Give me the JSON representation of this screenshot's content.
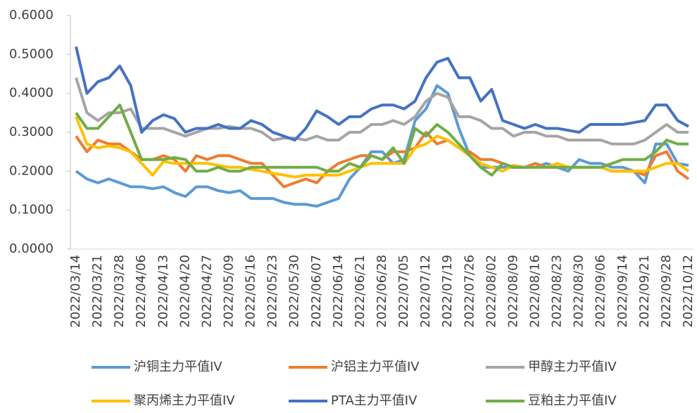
{
  "chart_data": {
    "type": "line",
    "categories": [
      "2022/03/14",
      null,
      "2022/03/21",
      null,
      "2022/03/28",
      null,
      "2022/04/06",
      null,
      "2022/04/13",
      null,
      "2022/04/20",
      null,
      "2022/04/27",
      null,
      "2022/05/09",
      null,
      "2022/05/16",
      null,
      "2022/05/23",
      null,
      "2022/05/30",
      null,
      "2022/06/07",
      null,
      "2022/06/14",
      null,
      "2022/06/21",
      null,
      "2022/06/28",
      null,
      "2022/07/05",
      null,
      "2022/07/12",
      null,
      "2022/07/19",
      null,
      "2022/07/26",
      null,
      "2022/08/02",
      null,
      "2022/08/09",
      null,
      "2022/08/16",
      null,
      "2022/08/23",
      null,
      "2022/08/30",
      null,
      "2022/09/06",
      null,
      "2022/09/14",
      null,
      "2022/09/21",
      null,
      "2022/09/28",
      null,
      "2022/10/12"
    ],
    "series": [
      {
        "name": "沪铜主力平值IV",
        "color": "#5b9bd5",
        "values": [
          0.2,
          0.18,
          0.17,
          0.18,
          0.17,
          0.16,
          0.16,
          0.155,
          0.16,
          0.145,
          0.135,
          0.16,
          0.16,
          0.15,
          0.145,
          0.15,
          0.13,
          0.13,
          0.13,
          0.12,
          0.115,
          0.115,
          0.11,
          0.12,
          0.13,
          0.18,
          0.21,
          0.25,
          0.25,
          0.22,
          0.23,
          0.33,
          0.36,
          0.42,
          0.4,
          0.31,
          0.24,
          0.21,
          0.21,
          0.21,
          0.21,
          0.21,
          0.21,
          0.22,
          0.21,
          0.2,
          0.23,
          0.22,
          0.22,
          0.21,
          0.21,
          0.2,
          0.17,
          0.27,
          0.27,
          0.22,
          0.215
        ]
      },
      {
        "name": "沪铝主力平值IV",
        "color": "#ed7d31",
        "values": [
          0.29,
          0.25,
          0.28,
          0.27,
          0.27,
          0.25,
          0.23,
          0.23,
          0.24,
          0.23,
          0.2,
          0.24,
          0.23,
          0.24,
          0.24,
          0.23,
          0.22,
          0.22,
          0.19,
          0.16,
          0.17,
          0.18,
          0.17,
          0.2,
          0.22,
          0.23,
          0.24,
          0.24,
          0.23,
          0.25,
          0.25,
          0.26,
          0.3,
          0.27,
          0.28,
          0.26,
          0.25,
          0.23,
          0.23,
          0.22,
          0.21,
          0.21,
          0.22,
          0.21,
          0.21,
          0.21,
          0.21,
          0.21,
          0.21,
          0.2,
          0.2,
          0.2,
          0.19,
          0.24,
          0.25,
          0.2,
          0.18
        ]
      },
      {
        "name": "甲醇主力平值IV",
        "color": "#a5a5a5",
        "values": [
          0.44,
          0.35,
          0.33,
          0.35,
          0.35,
          0.36,
          0.31,
          0.31,
          0.31,
          0.3,
          0.29,
          0.3,
          0.31,
          0.31,
          0.315,
          0.31,
          0.31,
          0.3,
          0.28,
          0.285,
          0.285,
          0.28,
          0.29,
          0.28,
          0.28,
          0.3,
          0.3,
          0.32,
          0.32,
          0.33,
          0.32,
          0.34,
          0.38,
          0.4,
          0.39,
          0.34,
          0.34,
          0.33,
          0.31,
          0.31,
          0.29,
          0.3,
          0.3,
          0.29,
          0.29,
          0.28,
          0.28,
          0.28,
          0.28,
          0.27,
          0.27,
          0.27,
          0.28,
          0.3,
          0.32,
          0.3,
          0.3
        ]
      },
      {
        "name": "聚丙烯主力平值IV",
        "color": "#ffc000",
        "values": [
          0.34,
          0.27,
          0.26,
          0.265,
          0.26,
          0.25,
          0.22,
          0.19,
          0.225,
          0.22,
          0.22,
          0.22,
          0.22,
          0.215,
          0.21,
          0.21,
          0.205,
          0.2,
          0.195,
          0.19,
          0.185,
          0.19,
          0.19,
          0.19,
          0.19,
          0.2,
          0.21,
          0.22,
          0.22,
          0.22,
          0.22,
          0.26,
          0.27,
          0.29,
          0.28,
          0.26,
          0.24,
          0.22,
          0.21,
          0.2,
          0.215,
          0.21,
          0.21,
          0.21,
          0.22,
          0.21,
          0.21,
          0.21,
          0.21,
          0.2,
          0.2,
          0.2,
          0.2,
          0.21,
          0.22,
          0.22,
          0.2
        ]
      },
      {
        "name": "PTA主力平值IV",
        "color": "#4472c4",
        "values": [
          0.52,
          0.4,
          0.43,
          0.44,
          0.47,
          0.42,
          0.3,
          0.33,
          0.345,
          0.335,
          0.3,
          0.31,
          0.31,
          0.32,
          0.31,
          0.31,
          0.33,
          0.32,
          0.3,
          0.29,
          0.28,
          0.31,
          0.355,
          0.34,
          0.32,
          0.34,
          0.34,
          0.36,
          0.37,
          0.37,
          0.36,
          0.38,
          0.44,
          0.48,
          0.49,
          0.44,
          0.44,
          0.38,
          0.41,
          0.33,
          0.32,
          0.31,
          0.32,
          0.31,
          0.31,
          0.305,
          0.3,
          0.32,
          0.32,
          0.32,
          0.32,
          0.325,
          0.33,
          0.37,
          0.37,
          0.33,
          0.315
        ]
      },
      {
        "name": "豆粕主力平值IV",
        "color": "#70ad47",
        "values": [
          0.35,
          0.31,
          0.31,
          0.34,
          0.37,
          0.3,
          0.23,
          0.23,
          0.23,
          0.235,
          0.23,
          0.2,
          0.2,
          0.21,
          0.2,
          0.2,
          0.21,
          0.21,
          0.21,
          0.21,
          0.21,
          0.21,
          0.21,
          0.2,
          0.2,
          0.22,
          0.21,
          0.24,
          0.23,
          0.26,
          0.22,
          0.31,
          0.29,
          0.32,
          0.3,
          0.27,
          0.24,
          0.21,
          0.19,
          0.22,
          0.21,
          0.21,
          0.21,
          0.21,
          0.21,
          0.21,
          0.21,
          0.21,
          0.21,
          0.22,
          0.23,
          0.23,
          0.23,
          0.25,
          0.28,
          0.27,
          0.27
        ]
      }
    ],
    "ylim": [
      0,
      0.6
    ],
    "yticks": [
      {
        "value": 0,
        "label": "0.0000"
      },
      {
        "value": 0.1,
        "label": "0.1000"
      },
      {
        "value": 0.2,
        "label": "0.2000"
      },
      {
        "value": 0.3,
        "label": "0.3000"
      },
      {
        "value": 0.4,
        "label": "0.4000"
      },
      {
        "value": 0.5,
        "label": "0.5000"
      },
      {
        "value": 0.6,
        "label": "0.6000"
      }
    ],
    "grid": false
  }
}
